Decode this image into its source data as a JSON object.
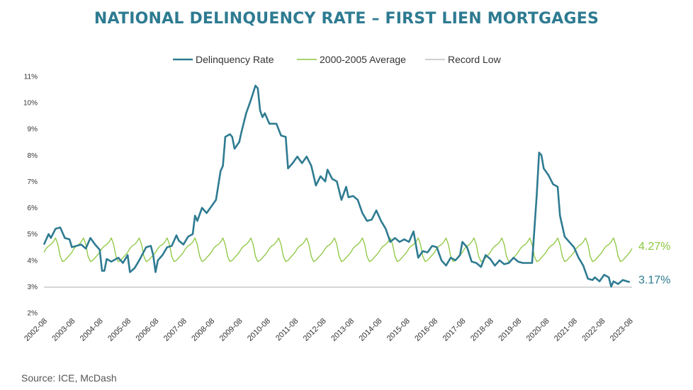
{
  "title": "NATIONAL DELINQUENCY RATE – FIRST LIEN MORTGAGES",
  "source": "Source: ICE, McDash",
  "colors": {
    "title": "#2e7b91",
    "delinquency": "#2e7b91",
    "average": "#8cc63f",
    "record_low": "#bfbfbf"
  },
  "chart_data": {
    "type": "line",
    "title": "NATIONAL DELINQUENCY RATE – FIRST LIEN MORTGAGES",
    "xlabel": "",
    "ylabel": "",
    "ylim": [
      2,
      11
    ],
    "yticks": [
      "2%",
      "3%",
      "4%",
      "5%",
      "6%",
      "7%",
      "8%",
      "9%",
      "10%",
      "11%"
    ],
    "xticks": [
      "2002-08",
      "2003-08",
      "2004-08",
      "2005-08",
      "2006-08",
      "2007-08",
      "2008-08",
      "2009-08",
      "2010-08",
      "2011-08",
      "2012-08",
      "2013-08",
      "2014-08",
      "2015-08",
      "2016-08",
      "2017-08",
      "2018-08",
      "2019-08",
      "2020-08",
      "2021-08",
      "2022-08",
      "2023-08"
    ],
    "x_start": "2002-08",
    "x_end": "2023-09",
    "grid": false,
    "legend": "top-center",
    "series": [
      {
        "name": "Delinquency Rate",
        "color": "#2e7b91",
        "points": [
          [
            "2002-08",
            4.6
          ],
          [
            "2002-10",
            5.0
          ],
          [
            "2002-11",
            4.85
          ],
          [
            "2003-01",
            5.2
          ],
          [
            "2003-03",
            5.25
          ],
          [
            "2003-05",
            4.85
          ],
          [
            "2003-07",
            4.8
          ],
          [
            "2003-08",
            4.5
          ],
          [
            "2003-10",
            4.55
          ],
          [
            "2003-12",
            4.6
          ],
          [
            "2004-02",
            4.45
          ],
          [
            "2004-04",
            4.85
          ],
          [
            "2004-06",
            4.6
          ],
          [
            "2004-08",
            4.4
          ],
          [
            "2004-09",
            3.6
          ],
          [
            "2004-10",
            3.6
          ],
          [
            "2004-11",
            4.05
          ],
          [
            "2005-01",
            3.95
          ],
          [
            "2005-04",
            4.1
          ],
          [
            "2005-06",
            3.9
          ],
          [
            "2005-08",
            4.2
          ],
          [
            "2005-09",
            3.55
          ],
          [
            "2005-11",
            3.7
          ],
          [
            "2006-01",
            4.0
          ],
          [
            "2006-04",
            4.5
          ],
          [
            "2006-06",
            4.55
          ],
          [
            "2006-07",
            4.2
          ],
          [
            "2006-08",
            3.55
          ],
          [
            "2006-09",
            4.0
          ],
          [
            "2006-11",
            4.2
          ],
          [
            "2007-01",
            4.5
          ],
          [
            "2007-03",
            4.55
          ],
          [
            "2007-05",
            4.95
          ],
          [
            "2007-06",
            4.75
          ],
          [
            "2007-08",
            4.6
          ],
          [
            "2007-10",
            4.9
          ],
          [
            "2007-12",
            5.0
          ],
          [
            "2008-01",
            5.7
          ],
          [
            "2008-02",
            5.5
          ],
          [
            "2008-04",
            6.0
          ],
          [
            "2008-06",
            5.8
          ],
          [
            "2008-08",
            6.05
          ],
          [
            "2008-10",
            6.3
          ],
          [
            "2008-12",
            7.4
          ],
          [
            "2009-01",
            7.6
          ],
          [
            "2009-02",
            8.7
          ],
          [
            "2009-04",
            8.8
          ],
          [
            "2009-05",
            8.7
          ],
          [
            "2009-06",
            8.25
          ],
          [
            "2009-08",
            8.5
          ],
          [
            "2009-09",
            8.9
          ],
          [
            "2009-11",
            9.6
          ],
          [
            "2010-01",
            10.1
          ],
          [
            "2010-03",
            10.65
          ],
          [
            "2010-04",
            10.55
          ],
          [
            "2010-05",
            9.7
          ],
          [
            "2010-06",
            9.45
          ],
          [
            "2010-07",
            9.6
          ],
          [
            "2010-09",
            9.2
          ],
          [
            "2010-12",
            9.2
          ],
          [
            "2011-02",
            8.75
          ],
          [
            "2011-04",
            8.7
          ],
          [
            "2011-05",
            7.5
          ],
          [
            "2011-07",
            7.7
          ],
          [
            "2011-09",
            7.95
          ],
          [
            "2011-11",
            7.7
          ],
          [
            "2012-01",
            7.95
          ],
          [
            "2012-03",
            7.6
          ],
          [
            "2012-05",
            6.85
          ],
          [
            "2012-07",
            7.2
          ],
          [
            "2012-09",
            7.0
          ],
          [
            "2012-10",
            7.45
          ],
          [
            "2012-12",
            7.1
          ],
          [
            "2013-02",
            7.0
          ],
          [
            "2013-04",
            6.3
          ],
          [
            "2013-06",
            6.8
          ],
          [
            "2013-07",
            6.4
          ],
          [
            "2013-09",
            6.45
          ],
          [
            "2013-11",
            6.3
          ],
          [
            "2014-01",
            5.8
          ],
          [
            "2014-03",
            5.5
          ],
          [
            "2014-05",
            5.55
          ],
          [
            "2014-07",
            5.9
          ],
          [
            "2014-09",
            5.5
          ],
          [
            "2014-11",
            5.2
          ],
          [
            "2015-01",
            4.7
          ],
          [
            "2015-03",
            4.85
          ],
          [
            "2015-05",
            4.7
          ],
          [
            "2015-07",
            4.8
          ],
          [
            "2015-09",
            4.7
          ],
          [
            "2015-11",
            5.1
          ],
          [
            "2016-01",
            4.1
          ],
          [
            "2016-03",
            4.35
          ],
          [
            "2016-05",
            4.3
          ],
          [
            "2016-07",
            4.55
          ],
          [
            "2016-09",
            4.5
          ],
          [
            "2016-11",
            4.0
          ],
          [
            "2017-01",
            3.8
          ],
          [
            "2017-03",
            4.1
          ],
          [
            "2017-05",
            4.0
          ],
          [
            "2017-07",
            4.2
          ],
          [
            "2017-08",
            4.7
          ],
          [
            "2017-10",
            4.5
          ],
          [
            "2017-12",
            3.95
          ],
          [
            "2018-02",
            3.9
          ],
          [
            "2018-04",
            3.75
          ],
          [
            "2018-06",
            4.2
          ],
          [
            "2018-08",
            4.05
          ],
          [
            "2018-10",
            3.8
          ],
          [
            "2018-12",
            4.0
          ],
          [
            "2019-02",
            3.85
          ],
          [
            "2019-04",
            3.9
          ],
          [
            "2019-06",
            4.1
          ],
          [
            "2019-08",
            3.95
          ],
          [
            "2019-10",
            3.9
          ],
          [
            "2020-02",
            3.9
          ],
          [
            "2020-04",
            6.5
          ],
          [
            "2020-05",
            8.1
          ],
          [
            "2020-06",
            8.0
          ],
          [
            "2020-07",
            7.5
          ],
          [
            "2020-09",
            7.25
          ],
          [
            "2020-11",
            6.9
          ],
          [
            "2021-01",
            6.8
          ],
          [
            "2021-02",
            5.7
          ],
          [
            "2021-04",
            4.9
          ],
          [
            "2021-06",
            4.7
          ],
          [
            "2021-08",
            4.5
          ],
          [
            "2021-10",
            4.1
          ],
          [
            "2021-12",
            3.8
          ],
          [
            "2022-02",
            3.3
          ],
          [
            "2022-04",
            3.25
          ],
          [
            "2022-05",
            3.35
          ],
          [
            "2022-07",
            3.2
          ],
          [
            "2022-09",
            3.45
          ],
          [
            "2022-11",
            3.35
          ],
          [
            "2022-12",
            3.0
          ],
          [
            "2023-01",
            3.2
          ],
          [
            "2023-03",
            3.1
          ],
          [
            "2023-05",
            3.25
          ],
          [
            "2023-08",
            3.17
          ]
        ],
        "end_label": "3.17%"
      },
      {
        "name": "2000-2005 Average",
        "color": "#8cc63f",
        "seasonal_pattern_by_month": {
          "Jan": 4.85,
          "Feb": 4.6,
          "Mar": 4.15,
          "Apr": 3.95,
          "May": 4.0,
          "Jun": 4.1,
          "Jul": 4.2,
          "Aug": 4.3,
          "Sep": 4.45,
          "Oct": 4.55,
          "Nov": 4.6,
          "Dec": 4.7
        },
        "end_label": "4.27%"
      },
      {
        "name": "Record Low",
        "color": "#bfbfbf",
        "value": 2.98
      }
    ]
  }
}
